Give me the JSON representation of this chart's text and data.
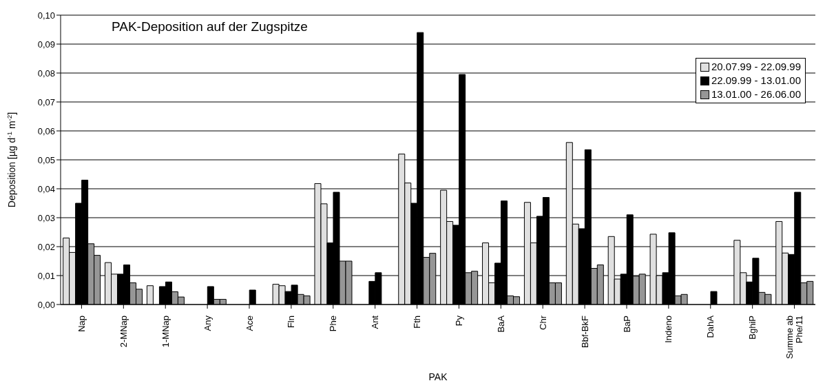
{
  "chart_data": {
    "type": "bar",
    "title": "PAK-Deposition auf der Zugspitze",
    "xlabel": "PAK",
    "ylabel": "Deposition [µg d$^{-1}$ m$^{-2}$]",
    "categories": [
      "Nap",
      "2-MNap",
      "1-MNap",
      "Any",
      "Ace",
      "Fln",
      "Phe",
      "Ant",
      "Fth",
      "Py",
      "BaA",
      "Chr",
      "Bbf-BkF",
      "BaP",
      "Indeno",
      "DahA",
      "BghiP",
      "Summe ab Phe/11"
    ],
    "series": [
      {
        "name": "20.07.99 - 22.09.99",
        "color": "#e0e0e0",
        "values": [
          0.023,
          0.0145,
          0.0065,
          0,
          0,
          0.007,
          0.0418,
          0,
          0.052,
          0.0395,
          0.0213,
          0.0353,
          0.056,
          0.0235,
          0.0243,
          0,
          0.0222,
          0.0287
        ]
      },
      {
        "color": "#e0e0e0",
        "values": [
          0.018,
          0.0105,
          0,
          0,
          0,
          0.0065,
          0.0348,
          0,
          0.042,
          0.0287,
          0.0075,
          0.0213,
          0.0278,
          0.0088,
          0.01,
          0,
          0.011,
          0.0178
        ]
      },
      {
        "name": "22.09.99 - 13.01.00",
        "color": "#000000",
        "values": [
          0.035,
          0.0105,
          0.0062,
          0,
          0,
          0.0045,
          0.0213,
          0.008,
          0.035,
          0.0274,
          0.0143,
          0.0305,
          0.0262,
          0.0105,
          0.011,
          0,
          0.0078,
          0.0173
        ]
      },
      {
        "color": "#000000",
        "values": [
          0.043,
          0.0137,
          0.0078,
          0.0062,
          0.005,
          0.0067,
          0.0388,
          0.011,
          0.094,
          0.0795,
          0.0358,
          0.037,
          0.0535,
          0.031,
          0.0248,
          0.0045,
          0.016,
          0.0388
        ]
      },
      {
        "name": "13.01.00 - 26.06.00",
        "color": "#969696",
        "values": [
          0.021,
          0.0075,
          0.0044,
          0.0018,
          0,
          0.0035,
          0.015,
          0,
          0.0163,
          0.011,
          0.003,
          0.0075,
          0.0125,
          0.0098,
          0.003,
          0,
          0.0042,
          0.0075
        ]
      },
      {
        "color": "#969696",
        "values": [
          0.017,
          0.0053,
          0.0026,
          0.0018,
          0,
          0.003,
          0.015,
          0,
          0.0177,
          0.0115,
          0.0027,
          0.0075,
          0.0137,
          0.0105,
          0.0035,
          0,
          0.0035,
          0.008
        ]
      }
    ],
    "ylim": [
      0,
      0.1
    ],
    "yticks": [
      {
        "value": 0,
        "label": "0,00"
      },
      {
        "value": 0.01,
        "label": "0,01"
      },
      {
        "value": 0.02,
        "label": "0,02"
      },
      {
        "value": 0.03,
        "label": "0,03"
      },
      {
        "value": 0.04,
        "label": "0,04"
      },
      {
        "value": 0.05,
        "label": "0,05"
      },
      {
        "value": 0.06,
        "label": "0,06"
      },
      {
        "value": 0.07,
        "label": "0,07"
      },
      {
        "value": 0.08,
        "label": "0,08"
      },
      {
        "value": 0.09,
        "label": "0,09"
      },
      {
        "value": 0.1,
        "label": "0,10"
      }
    ],
    "grid": "y",
    "legend": "top right"
  }
}
